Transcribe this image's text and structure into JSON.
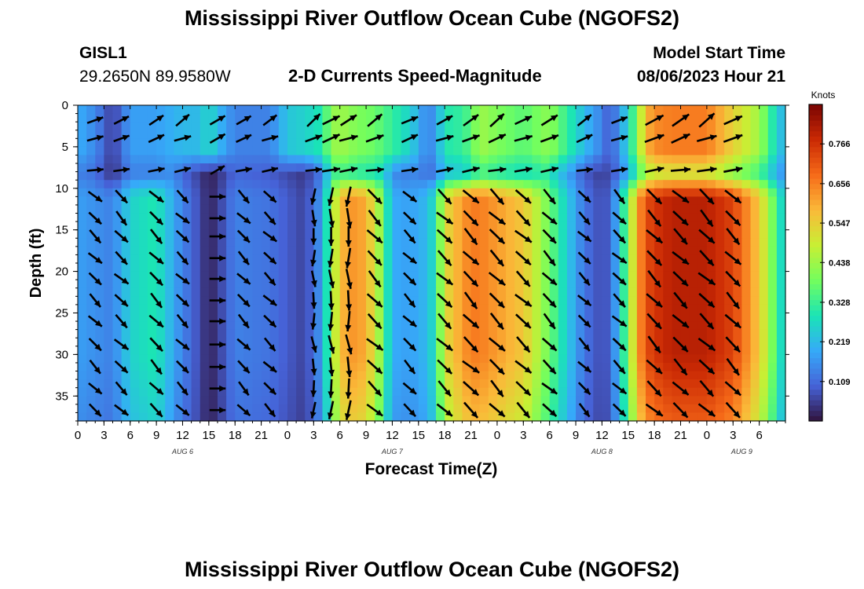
{
  "title": "Mississippi River Outflow Ocean Cube (NGOFS2)",
  "title_repeat": "Mississippi River Outflow Ocean Cube (NGOFS2)",
  "station": {
    "id": "GISL1",
    "location": "29.2650N  89.9580W"
  },
  "model_start": {
    "label": "Model Start Time",
    "value": "08/06/2023 Hour 21"
  },
  "colors": {
    "arrow": "#000000",
    "colormap": [
      "#30123b",
      "#4662d7",
      "#36aaf9",
      "#1ae4b6",
      "#72fe5e",
      "#c8ef34",
      "#faba39",
      "#f66b19",
      "#cb2a04",
      "#7a0403"
    ]
  },
  "chart_data": {
    "type": "heatmap",
    "subtitle": "2-D Currents Speed-Magnitude",
    "xlabel": "Forecast Time(Z)",
    "ylabel": "Depth (ft)",
    "x_range_hours": [
      0,
      81
    ],
    "y_range_ft": [
      0,
      38
    ],
    "x_ticks": [
      {
        "h": 0,
        "label": "0"
      },
      {
        "h": 3,
        "label": "3"
      },
      {
        "h": 6,
        "label": "6"
      },
      {
        "h": 9,
        "label": "9"
      },
      {
        "h": 12,
        "label": "12"
      },
      {
        "h": 15,
        "label": "15"
      },
      {
        "h": 18,
        "label": "18"
      },
      {
        "h": 21,
        "label": "21"
      },
      {
        "h": 24,
        "label": "0"
      },
      {
        "h": 27,
        "label": "3"
      },
      {
        "h": 30,
        "label": "6"
      },
      {
        "h": 33,
        "label": "9"
      },
      {
        "h": 36,
        "label": "12"
      },
      {
        "h": 39,
        "label": "15"
      },
      {
        "h": 42,
        "label": "18"
      },
      {
        "h": 45,
        "label": "21"
      },
      {
        "h": 48,
        "label": "0"
      },
      {
        "h": 51,
        "label": "3"
      },
      {
        "h": 54,
        "label": "6"
      },
      {
        "h": 57,
        "label": "9"
      },
      {
        "h": 60,
        "label": "12"
      },
      {
        "h": 63,
        "label": "15"
      },
      {
        "h": 66,
        "label": "18"
      },
      {
        "h": 69,
        "label": "21"
      },
      {
        "h": 72,
        "label": "0"
      },
      {
        "h": 75,
        "label": "3"
      },
      {
        "h": 78,
        "label": "6"
      }
    ],
    "date_labels": [
      {
        "h": 12,
        "label": "AUG 6"
      },
      {
        "h": 36,
        "label": "AUG 7"
      },
      {
        "h": 60,
        "label": "AUG 8"
      },
      {
        "h": 76,
        "label": "AUG 9"
      }
    ],
    "y_ticks": [
      0,
      5,
      10,
      15,
      20,
      25,
      30,
      35
    ],
    "colorbar": {
      "unit": "Knots",
      "min": 0,
      "max": 0.875,
      "tick_values": [
        0.109,
        0.219,
        0.328,
        0.438,
        0.547,
        0.656,
        0.766
      ],
      "tick_labels": [
        "0.109",
        "0.219",
        "0.328",
        "0.438",
        "0.547",
        "0.656",
        "0.766"
      ]
    },
    "description_of_field": {
      "time_nodes_hours": [
        0,
        2,
        4,
        6,
        9,
        12,
        14,
        15,
        16,
        18,
        22,
        24,
        26,
        28,
        29,
        30,
        32,
        34,
        36,
        38,
        40,
        41,
        42,
        44,
        45,
        46,
        48,
        51,
        54,
        58,
        60,
        61,
        62,
        63,
        64,
        65,
        66,
        68,
        72,
        75,
        78,
        80,
        81
      ],
      "surface_speed_knots": [
        0.2,
        0.15,
        0.05,
        0.18,
        0.18,
        0.22,
        0.22,
        0.28,
        0.22,
        0.14,
        0.14,
        0.24,
        0.26,
        0.3,
        0.42,
        0.44,
        0.4,
        0.38,
        0.32,
        0.26,
        0.14,
        0.18,
        0.3,
        0.32,
        0.36,
        0.44,
        0.4,
        0.36,
        0.42,
        0.22,
        0.14,
        0.08,
        0.18,
        0.26,
        0.4,
        0.58,
        0.64,
        0.66,
        0.66,
        0.54,
        0.44,
        0.26,
        0.2
      ],
      "mid_speed_knots": [
        0.18,
        0.16,
        0.14,
        0.26,
        0.3,
        0.14,
        0.07,
        0.02,
        0.05,
        0.14,
        0.12,
        0.09,
        0.06,
        0.18,
        0.4,
        0.58,
        0.64,
        0.52,
        0.2,
        0.18,
        0.22,
        0.3,
        0.52,
        0.62,
        0.66,
        0.66,
        0.62,
        0.56,
        0.38,
        0.12,
        0.07,
        0.1,
        0.24,
        0.4,
        0.6,
        0.72,
        0.76,
        0.8,
        0.8,
        0.74,
        0.56,
        0.34,
        0.22
      ],
      "layer_break_depth_ft": 9.5,
      "band_dip_depth_ft": 6.5
    },
    "arrow_columns_hours": [
      2,
      5,
      9,
      12,
      16,
      19,
      22,
      27,
      29,
      31,
      34,
      38,
      42,
      45,
      48,
      51,
      54,
      58,
      62,
      66,
      69,
      72,
      75
    ],
    "arrow_depths_ft": [
      1.8,
      4.0,
      7.8,
      11.0,
      13.6,
      15.8,
      18.4,
      20.9,
      23.5,
      26.0,
      28.8,
      31.5,
      34.1,
      36.7
    ],
    "arrow_directions_note": "surface rows toward east/NE, deeper rows toward SE; directions in degrees (0=east, 90=north)"
  }
}
